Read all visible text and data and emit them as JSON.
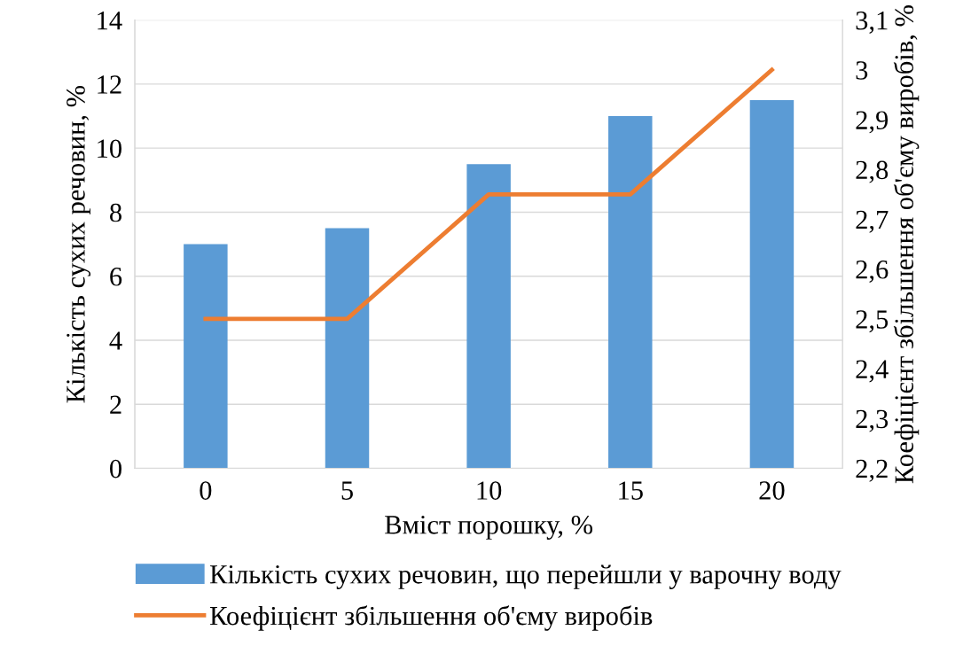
{
  "chart_data": {
    "type": "bar",
    "categories": [
      "0",
      "5",
      "10",
      "15",
      "20"
    ],
    "xlabel": "Вміст порошку, %",
    "ylabel": "Кількість сухих речовин, %",
    "y2label": "Коефіцієнт збільшення об'єму виробів, %",
    "series": [
      {
        "name": "Кількість сухих речовин, що перейшли у варочну воду",
        "color": "#5b9bd5",
        "values": [
          7,
          7.5,
          9.5,
          11,
          11.5
        ]
      },
      {
        "name": "Коефіцієнт збільшення об'єму виробів",
        "type": "line",
        "axis": "y2",
        "color": "#ed7d31",
        "values": [
          2.5,
          2.5,
          2.75,
          2.75,
          3.0
        ]
      }
    ],
    "ylim": [
      0,
      14
    ],
    "yticks": [
      0,
      2,
      4,
      6,
      8,
      10,
      12,
      14
    ],
    "y2lim": [
      2.2,
      3.1
    ],
    "y2ticks": [
      {
        "value": 2.2,
        "label": "2,2"
      },
      {
        "value": 2.3,
        "label": "2,3"
      },
      {
        "value": 2.4,
        "label": "2,4"
      },
      {
        "value": 2.5,
        "label": "2,5"
      },
      {
        "value": 2.6,
        "label": "2,6"
      },
      {
        "value": 2.7,
        "label": "2,7"
      },
      {
        "value": 2.8,
        "label": "2,8"
      },
      {
        "value": 2.9,
        "label": "2,9"
      },
      {
        "value": 3.0,
        "label": "3"
      },
      {
        "value": 3.1,
        "label": "3,1"
      }
    ],
    "grid": "y",
    "legend": "bottom",
    "marker": "none",
    "line_style": "solid"
  }
}
